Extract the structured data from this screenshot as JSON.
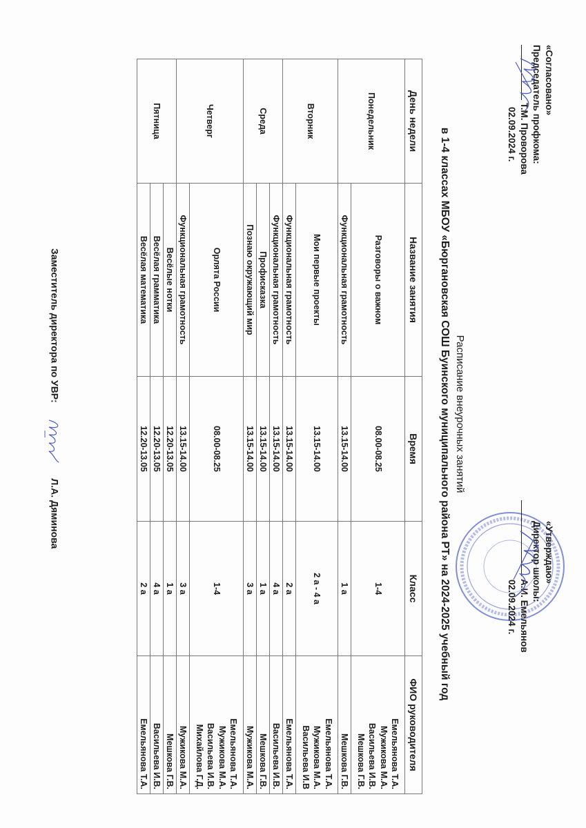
{
  "approval_left": {
    "label": "«Согласовано»",
    "position": "Председатель профкома:",
    "name": "Т.М. Проворова",
    "date": "02.09.2024 г."
  },
  "approval_right": {
    "label": "«Утверждаю»",
    "position": "Директор школы:",
    "name": "А.И. Емельянов",
    "date": "02.09.2024 г."
  },
  "title": "Расписание внеурочных занятий",
  "subtitle": "в 1-4 классах МБОУ «Бюргановская СОШ Буинского муниципального района РТ» на 2024-2025 учебный год",
  "schedule": {
    "headers": [
      "День недели",
      "Название занятия",
      "Время",
      "Класс",
      "ФИО руководителя"
    ],
    "days": [
      {
        "day": "Понедельник",
        "rows": [
          {
            "name": "Разговоры о важном",
            "time": "08.00-08.25",
            "class": "1-4",
            "teachers": [
              "Емельянова Т.А.",
              "Мужикова М.А.",
              "Васильева И.В.",
              "Мешкова Г.В."
            ]
          },
          {
            "name": "Функциональная грамотность",
            "time": "13.15-14.00",
            "class": "1 а",
            "teachers": [
              "Мешкова Г.В."
            ]
          }
        ]
      },
      {
        "day": "Вторник",
        "rows": [
          {
            "name": "Мои первые проекты",
            "time": "13.15-14.00",
            "class": "2 а - 4 а",
            "teachers": [
              "Емельянова Т.А.",
              "Мужикова М.А.",
              "Васильева И.В"
            ]
          },
          {
            "name": "Функциональная грамотность",
            "time": "13.15-14.00",
            "class": "2 а",
            "teachers": [
              "Емельянова Т.А."
            ]
          }
        ]
      },
      {
        "day": "Среда",
        "rows": [
          {
            "name": "Функциональная грамотность",
            "time": "13.15-14.00",
            "class": "4 а",
            "teachers": [
              "Васильева И.В."
            ]
          },
          {
            "name": "Профисказка",
            "time": "13.15-14.00",
            "class": "1 а",
            "teachers": [
              "Мешкова Г.В."
            ]
          },
          {
            "name": "Познаю окружающий мир",
            "time": "13.15-14.00",
            "class": "3 а",
            "teachers": [
              "Мужикова М.А."
            ]
          }
        ]
      },
      {
        "day": "Четверг",
        "rows": [
          {
            "name": "Орлята России",
            "time": "08.00-08.25",
            "class": "1-4",
            "teachers": [
              "Емельянова Т.А.",
              "Мужикова М.А.",
              "Васильева И.В.",
              "Михайлова Г.Д."
            ]
          },
          {
            "name": "Функциональная грамотность",
            "time": "13.15-14.00",
            "class": "3 а",
            "teachers": [
              "Мужикова М.А."
            ]
          }
        ]
      },
      {
        "day": "Пятница",
        "rows": [
          {
            "name": "Весёлые нотки",
            "time": "12.20-13.05",
            "class": "1 а",
            "teachers": [
              "Мешкова Г.В."
            ]
          },
          {
            "name": "Весёлая грамматика",
            "time": "12.20-13.05",
            "class": "4 а",
            "teachers": [
              "Васильева И.В."
            ]
          },
          {
            "name": "Весёлая математика",
            "time": "12.20-13.05",
            "class": "2 а",
            "teachers": [
              "Емельянова Т.А."
            ]
          }
        ]
      }
    ]
  },
  "footer": {
    "position": "Заместитель директора по УВР:",
    "name": "Л.А. Дяминова"
  },
  "colors": {
    "ink": "#1c1c1c",
    "signature": "#4a5bc4",
    "stamp": "#7f8fd6"
  }
}
